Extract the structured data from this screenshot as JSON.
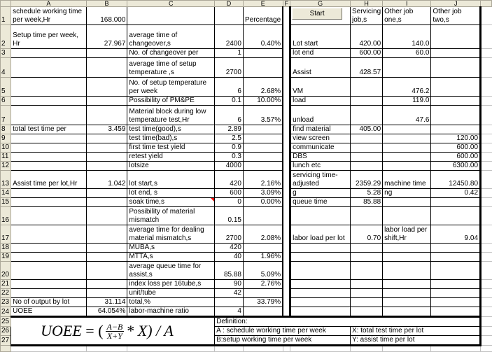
{
  "column_headers": [
    "A",
    "B",
    "C",
    "D",
    "E",
    "F",
    "G",
    "H",
    "I",
    "J"
  ],
  "start_button": "Start",
  "rows": [
    {
      "n": "1",
      "A": "schedule working time per week,Hr",
      "B": "168.000",
      "C": "",
      "D": "",
      "E": "Percentage",
      "G": "",
      "H": "Servicing job,s",
      "I": "Other job one,s",
      "J": "Other job two,s"
    },
    {
      "n": "2",
      "A": "Setup time per week, Hr",
      "B": "27.967",
      "C": "average time of changeover,s",
      "D": "2400",
      "E": "0.40%",
      "G": "Lot start",
      "H": "420.00",
      "I": "140.0",
      "J": ""
    },
    {
      "n": "3",
      "A": "",
      "B": "",
      "C": "No. of changeover per",
      "D": "1",
      "E": "",
      "G": "lot end",
      "H": "600.00",
      "I": "60.0",
      "J": ""
    },
    {
      "n": "4",
      "A": "",
      "B": "",
      "C": "average time of setup temperature ,s",
      "D": "2700",
      "E": "",
      "G": "Assist",
      "H": "428.57",
      "I": "",
      "J": ""
    },
    {
      "n": "5",
      "A": "",
      "B": "",
      "C": "No. of setup temperature per week",
      "D": "6",
      "E": "2.68%",
      "G": "VM",
      "H": "",
      "I": "476.2",
      "J": ""
    },
    {
      "n": "6",
      "A": "",
      "B": "",
      "C": "Possibility of PM&PE",
      "D": "0.1",
      "E": "10.00%",
      "G": "load",
      "H": "",
      "I": "119.0",
      "J": ""
    },
    {
      "n": "7",
      "A": "",
      "B": "",
      "C": "Material block during low temperature test,Hr",
      "D": "6",
      "E": "3.57%",
      "G": "unload",
      "H": "",
      "I": "47.6",
      "J": ""
    },
    {
      "n": "8",
      "A": "total test time per",
      "B": "3.459",
      "C": "test time(good),s",
      "D": "2.89",
      "E": "",
      "G": "find material",
      "H": "405.00",
      "I": "",
      "J": ""
    },
    {
      "n": "9",
      "A": "",
      "B": "",
      "C": "test time(bad),s",
      "D": "2.5",
      "E": "",
      "G": "view screen",
      "H": "",
      "I": "",
      "J": "120.00"
    },
    {
      "n": "10",
      "A": "",
      "B": "",
      "C": "first time test yield",
      "D": "0.9",
      "E": "",
      "G": "communicate",
      "H": "",
      "I": "",
      "J": "600.00"
    },
    {
      "n": "11",
      "A": "",
      "B": "",
      "C": "retest yield",
      "D": "0.3",
      "E": "",
      "G": "DBS",
      "H": "",
      "I": "",
      "J": "600.00"
    },
    {
      "n": "12",
      "A": "",
      "B": "",
      "C": "lotsize",
      "D": "4000",
      "E": "",
      "G": "lunch etc",
      "H": "",
      "I": "",
      "J": "6300.00"
    },
    {
      "n": "13",
      "A": "Assist time per lot,Hr",
      "B": "1.042",
      "C": "lot start,s",
      "D": "420",
      "E": "2.16%",
      "G": "servicing time-adjusted",
      "H": "2359.29",
      "I": "machine time",
      "J": "12450.80"
    },
    {
      "n": "14",
      "A": "",
      "B": "",
      "C": "lot end, s",
      "D": "600",
      "E": "3.09%",
      "G": "g",
      "H": "5.28",
      "I": "ng",
      "J": "0.42"
    },
    {
      "n": "15",
      "A": "",
      "B": "",
      "C": "soak time,s",
      "D": "0",
      "E": "0.00%",
      "G": "queue time",
      "H": "85.88",
      "I": "",
      "J": ""
    },
    {
      "n": "16",
      "A": "",
      "B": "",
      "C": "Possibility of material mismatch",
      "D": "0.15",
      "E": "",
      "G": "",
      "H": "",
      "I": "",
      "J": ""
    },
    {
      "n": "17",
      "A": "",
      "B": "",
      "C": "average time for dealing material mismatch,s",
      "D": "2700",
      "E": "2.08%",
      "G": "labor load per lot",
      "H": "0.70",
      "I": "labor load per shift,Hr",
      "J": "9.04"
    },
    {
      "n": "18",
      "A": "",
      "B": "",
      "C": "MUBA,s",
      "D": "420",
      "E": "",
      "G": "",
      "H": "",
      "I": "",
      "J": ""
    },
    {
      "n": "19",
      "A": "",
      "B": "",
      "C": "MTTA,s",
      "D": "40",
      "E": "1.96%",
      "G": "",
      "H": "",
      "I": "",
      "J": ""
    },
    {
      "n": "20",
      "A": "",
      "B": "",
      "C": "average queue time  for assist,s",
      "D": "85.88",
      "E": "5.09%",
      "G": "",
      "H": "",
      "I": "",
      "J": ""
    },
    {
      "n": "21",
      "A": "",
      "B": "",
      "C": "index loss per 16tube,s",
      "D": "90",
      "E": "2.76%",
      "G": "",
      "H": "",
      "I": "",
      "J": ""
    },
    {
      "n": "22",
      "A": "",
      "B": "",
      "C": "unit/tube",
      "D": "42",
      "E": "",
      "G": "",
      "H": "",
      "I": "",
      "J": ""
    },
    {
      "n": "23",
      "A": "No of output by lot",
      "B": "31.114",
      "C": "total,%",
      "D": "",
      "E": "33.79%",
      "G": "",
      "H": "",
      "I": "",
      "J": ""
    },
    {
      "n": "24",
      "A": "UOEE",
      "B": "64.054%",
      "C": "labor-machine ratio",
      "D": "4",
      "E": "",
      "G": "",
      "H": "",
      "I": "",
      "J": ""
    }
  ],
  "footer": {
    "row_numbers": [
      "25",
      "26",
      "27"
    ],
    "formula": {
      "lhs": "UOEE",
      "eq": "= (",
      "numerator": "A−B",
      "denominator": "X+Y",
      "rest": "* X) / A"
    },
    "definition_title": "Definition:",
    "definitions": [
      [
        "A : schedule working time per week",
        "X: total test time per lot"
      ],
      [
        "B:setup working time per week",
        "Y: assist time per lot"
      ]
    ]
  }
}
